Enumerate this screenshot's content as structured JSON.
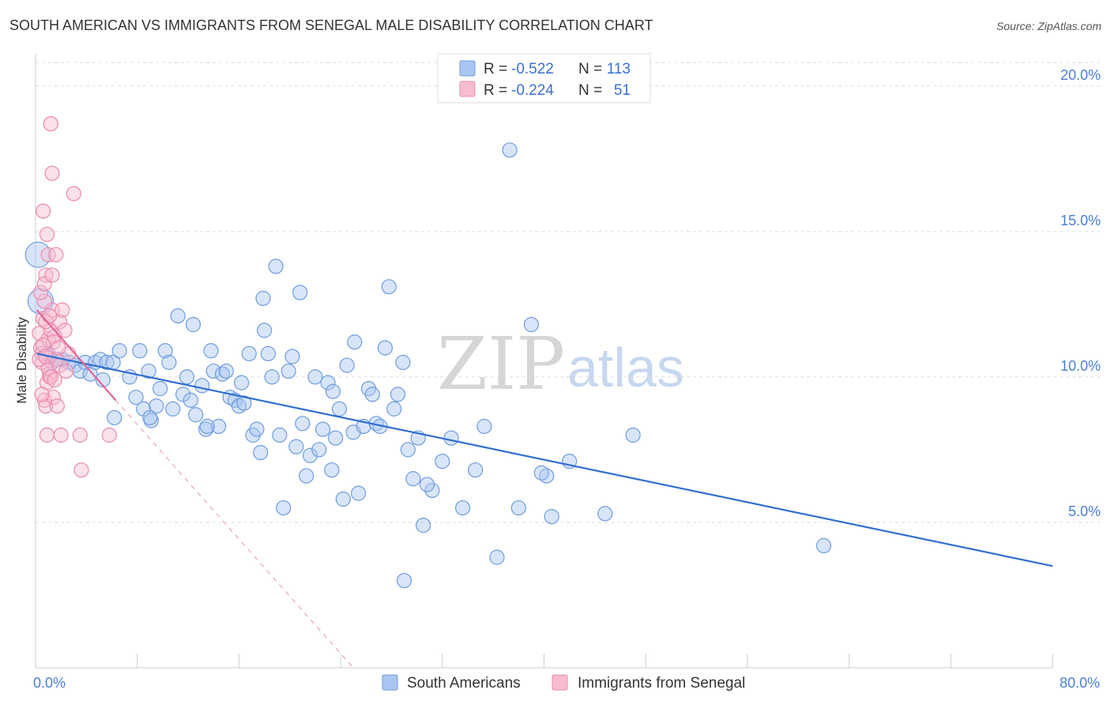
{
  "header": {
    "title": "SOUTH AMERICAN VS IMMIGRANTS FROM SENEGAL MALE DISABILITY CORRELATION CHART",
    "source": "Source: ZipAtlas.com"
  },
  "watermark": {
    "zip": "ZIP",
    "atlas": "atlas"
  },
  "legend": {
    "rows": [
      {
        "r_label": "R =",
        "r_value": "-0.522",
        "n_label": "N =",
        "n_value": "113",
        "color": "#a9c6f2",
        "stroke": "#6f9bde"
      },
      {
        "r_label": "R =",
        "r_value": "-0.224",
        "n_label": "N =",
        "n_value": "51",
        "color": "#f7bcd0",
        "stroke": "#e98aad"
      }
    ]
  },
  "chart_data": {
    "type": "scatter",
    "title": "SOUTH AMERICAN VS IMMIGRANTS FROM SENEGAL MALE DISABILITY CORRELATION CHART",
    "ylabel": "Male Disability",
    "xlabel": "",
    "xlim": [
      0,
      80
    ],
    "ylim": [
      0,
      21
    ],
    "x_tick_labels": [
      {
        "value": 0,
        "label": "0.0%"
      },
      {
        "value": 80,
        "label": "80.0%"
      }
    ],
    "y_tick_labels": [
      {
        "value": 5,
        "label": "5.0%"
      },
      {
        "value": 10,
        "label": "10.0%"
      },
      {
        "value": 15,
        "label": "15.0%"
      },
      {
        "value": 20,
        "label": "20.0%"
      }
    ],
    "grid": true,
    "legend_position": "top-center",
    "series": [
      {
        "name": "South Americans",
        "color": "#a9c6f2",
        "stroke": "#6f9bde",
        "trend": {
          "x": [
            0.1,
            80
          ],
          "y": [
            10.8,
            3.5
          ],
          "color": "#2f6fd0"
        },
        "points": [
          [
            0.2,
            14.2
          ],
          [
            0.4,
            12.6
          ],
          [
            1.0,
            10.8
          ],
          [
            1.3,
            10.5
          ],
          [
            1.7,
            10.6
          ],
          [
            2.1,
            10.6
          ],
          [
            2.6,
            10.5
          ],
          [
            3.1,
            10.4
          ],
          [
            3.5,
            10.2
          ],
          [
            3.9,
            10.5
          ],
          [
            4.3,
            10.1
          ],
          [
            4.7,
            10.5
          ],
          [
            5.1,
            10.6
          ],
          [
            5.6,
            10.5
          ],
          [
            6.1,
            10.5
          ],
          [
            6.6,
            10.9
          ],
          [
            6.2,
            8.6
          ],
          [
            7.4,
            10.0
          ],
          [
            7.9,
            9.3
          ],
          [
            8.2,
            10.9
          ],
          [
            8.5,
            8.9
          ],
          [
            8.9,
            10.2
          ],
          [
            9.1,
            8.5
          ],
          [
            9.5,
            9.0
          ],
          [
            9.8,
            9.6
          ],
          [
            10.2,
            10.9
          ],
          [
            10.5,
            10.5
          ],
          [
            10.8,
            8.9
          ],
          [
            11.2,
            12.1
          ],
          [
            11.6,
            9.4
          ],
          [
            11.9,
            10.0
          ],
          [
            12.2,
            9.2
          ],
          [
            12.4,
            11.8
          ],
          [
            12.6,
            8.7
          ],
          [
            13.1,
            9.7
          ],
          [
            13.4,
            8.2
          ],
          [
            13.8,
            10.9
          ],
          [
            14.0,
            10.2
          ],
          [
            14.4,
            8.3
          ],
          [
            14.7,
            10.1
          ],
          [
            15.0,
            10.2
          ],
          [
            15.3,
            9.3
          ],
          [
            15.7,
            9.2
          ],
          [
            16.0,
            9.0
          ],
          [
            16.4,
            9.1
          ],
          [
            16.8,
            10.8
          ],
          [
            17.1,
            8.0
          ],
          [
            17.4,
            8.2
          ],
          [
            17.7,
            7.4
          ],
          [
            18.0,
            11.6
          ],
          [
            18.3,
            10.8
          ],
          [
            18.6,
            10.0
          ],
          [
            18.9,
            13.8
          ],
          [
            19.2,
            8.0
          ],
          [
            19.5,
            5.5
          ],
          [
            19.9,
            10.2
          ],
          [
            20.2,
            10.7
          ],
          [
            20.5,
            7.6
          ],
          [
            20.8,
            12.9
          ],
          [
            21.0,
            8.4
          ],
          [
            21.3,
            6.6
          ],
          [
            21.6,
            7.3
          ],
          [
            22.0,
            10.0
          ],
          [
            22.3,
            7.5
          ],
          [
            22.6,
            8.2
          ],
          [
            23.0,
            9.8
          ],
          [
            23.3,
            6.8
          ],
          [
            23.6,
            7.9
          ],
          [
            23.9,
            8.9
          ],
          [
            24.2,
            5.8
          ],
          [
            24.5,
            10.4
          ],
          [
            25.0,
            8.1
          ],
          [
            25.4,
            6.0
          ],
          [
            25.8,
            8.3
          ],
          [
            26.2,
            9.6
          ],
          [
            26.5,
            9.4
          ],
          [
            26.8,
            8.4
          ],
          [
            27.1,
            8.3
          ],
          [
            27.5,
            11.0
          ],
          [
            27.8,
            13.1
          ],
          [
            28.2,
            8.9
          ],
          [
            28.5,
            9.4
          ],
          [
            28.9,
            10.5
          ],
          [
            29.3,
            7.5
          ],
          [
            29.7,
            6.5
          ],
          [
            30.1,
            7.9
          ],
          [
            30.5,
            4.9
          ],
          [
            31.2,
            6.1
          ],
          [
            32.0,
            7.1
          ],
          [
            32.7,
            7.9
          ],
          [
            33.6,
            5.5
          ],
          [
            34.6,
            6.8
          ],
          [
            35.3,
            8.3
          ],
          [
            36.3,
            3.8
          ],
          [
            37.3,
            17.8
          ],
          [
            38.0,
            5.5
          ],
          [
            39.0,
            11.8
          ],
          [
            40.2,
            6.6
          ],
          [
            40.6,
            5.2
          ],
          [
            42.0,
            7.1
          ],
          [
            44.8,
            5.3
          ],
          [
            47.0,
            8.0
          ],
          [
            62.0,
            4.2
          ],
          [
            29.0,
            3.0
          ],
          [
            23.4,
            9.5
          ],
          [
            16.2,
            9.8
          ],
          [
            9.0,
            8.6
          ],
          [
            5.3,
            9.9
          ],
          [
            13.5,
            8.3
          ],
          [
            25.1,
            11.2
          ],
          [
            30.8,
            6.3
          ],
          [
            39.8,
            6.7
          ],
          [
            17.9,
            12.7
          ]
        ]
      },
      {
        "name": "Immigrants from Senegal",
        "color": "#f7bcd0",
        "stroke": "#e98aad",
        "trend": {
          "x": [
            0.1,
            6.3
          ],
          "y": [
            12.3,
            9.2
          ],
          "color": "#e0679a",
          "extend_to": [
            25,
            0
          ],
          "extend_dashed": true
        },
        "points": [
          [
            0.3,
            11.5
          ],
          [
            0.4,
            11.0
          ],
          [
            0.5,
            10.5
          ],
          [
            0.6,
            12.0
          ],
          [
            0.7,
            9.2
          ],
          [
            0.8,
            9.0
          ],
          [
            0.9,
            8.0
          ],
          [
            1.0,
            11.3
          ],
          [
            1.1,
            10.1
          ],
          [
            1.2,
            11.6
          ],
          [
            1.3,
            12.3
          ],
          [
            0.6,
            15.7
          ],
          [
            1.2,
            18.7
          ],
          [
            1.3,
            17.0
          ],
          [
            0.9,
            14.9
          ],
          [
            1.0,
            14.2
          ],
          [
            1.6,
            14.2
          ],
          [
            0.8,
            13.5
          ],
          [
            1.9,
            11.9
          ],
          [
            2.1,
            12.3
          ],
          [
            2.3,
            11.6
          ],
          [
            1.5,
            11.4
          ],
          [
            1.1,
            10.0
          ],
          [
            0.7,
            12.6
          ],
          [
            3.0,
            16.3
          ],
          [
            1.4,
            9.3
          ],
          [
            1.7,
            9.0
          ],
          [
            2.0,
            8.0
          ],
          [
            3.5,
            8.0
          ],
          [
            3.6,
            6.8
          ],
          [
            2.6,
            10.8
          ],
          [
            0.5,
            10.8
          ],
          [
            1.0,
            10.3
          ],
          [
            0.4,
            12.9
          ],
          [
            0.8,
            11.9
          ],
          [
            1.6,
            10.6
          ],
          [
            1.9,
            10.4
          ],
          [
            0.9,
            9.8
          ],
          [
            1.4,
            11.2
          ],
          [
            0.6,
            11.1
          ],
          [
            1.2,
            10.0
          ],
          [
            5.8,
            8.0
          ],
          [
            0.3,
            10.6
          ],
          [
            0.7,
            13.2
          ],
          [
            1.1,
            12.1
          ],
          [
            1.8,
            11.0
          ],
          [
            2.4,
            10.2
          ],
          [
            1.5,
            9.9
          ],
          [
            0.8,
            10.7
          ],
          [
            1.3,
            13.5
          ],
          [
            0.5,
            9.4
          ]
        ]
      }
    ]
  }
}
